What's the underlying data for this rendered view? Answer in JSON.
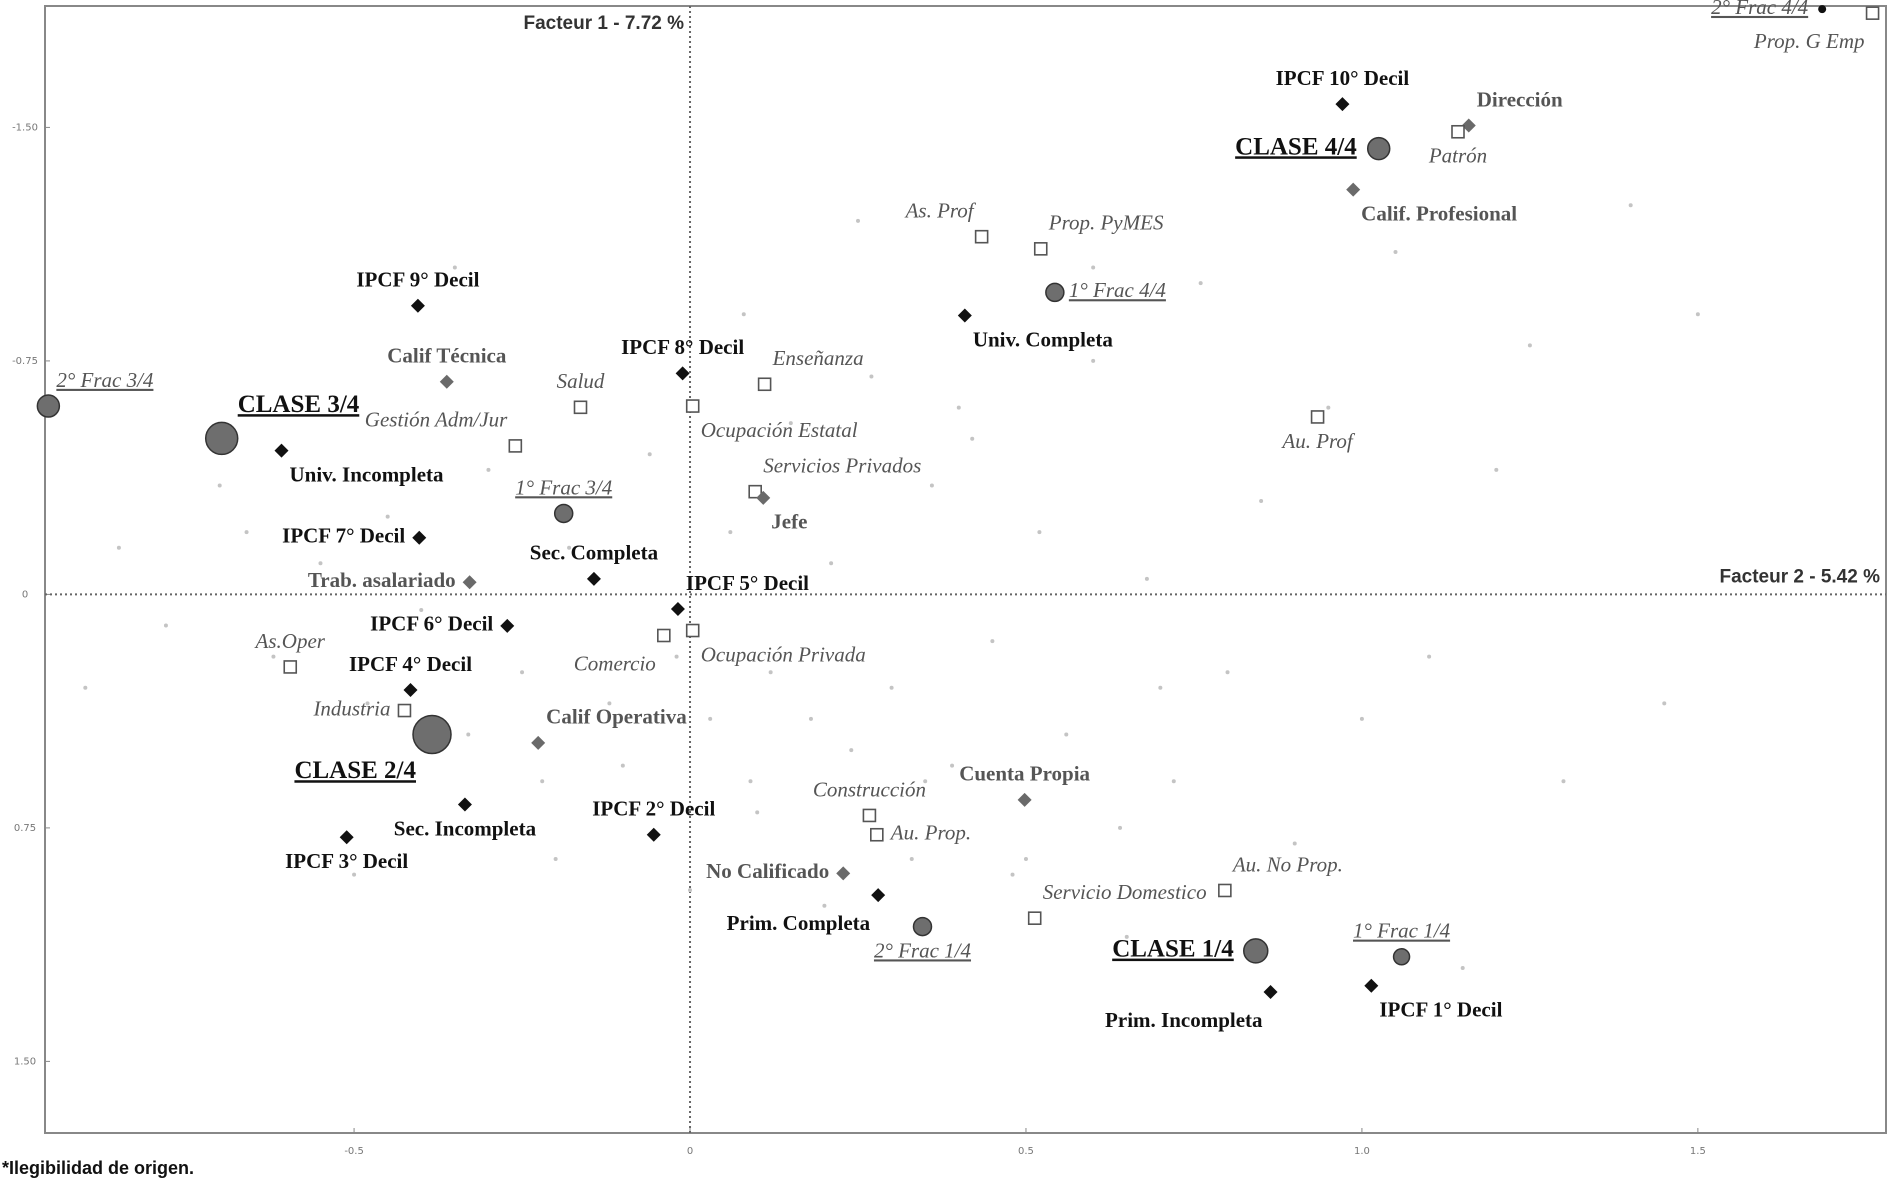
{
  "chart_data": {
    "type": "scatter",
    "x_axis_title": "Facteur 2 - 5.42 %",
    "y_axis_title": "Facteur 1 - 7.72 %",
    "xlim": [
      -0.96,
      1.78
    ],
    "ylim": [
      -1.89,
      1.73
    ],
    "y_inverted": true,
    "xticks": [
      -0.5,
      0,
      0.5,
      {
        "value": 1.0,
        "label": "1.0"
      },
      1.5
    ],
    "yticks": [
      {
        "value": -1.5,
        "label": "-1.50"
      },
      {
        "value": -0.75,
        "label": "-0.75"
      },
      0,
      {
        "value": 0.75,
        "label": "0.75"
      },
      {
        "value": 1.5,
        "label": "1.50"
      }
    ],
    "footnote": "*Ilegibilidad de origen.",
    "points": [
      {
        "label": "2° Frac 4/4",
        "x": 1.685,
        "y": -1.88,
        "marker": "dot",
        "size": 4,
        "label_style": "frac",
        "label_pos": "left"
      },
      {
        "label": "Prop. G Emp",
        "x": 1.76,
        "y": -1.867,
        "marker": "square",
        "label_style": "italic",
        "label_pos": "below-left"
      },
      {
        "label": "IPCF 10° Decil",
        "x": 0.971,
        "y": -1.575,
        "marker": "diamond-black",
        "label_style": "bold",
        "label_pos": "above"
      },
      {
        "label": "Dirección",
        "x": 1.159,
        "y": -1.506,
        "marker": "diamond-gray",
        "label_style": "bold-gray",
        "label_pos": "above-right"
      },
      {
        "label": "Patrón",
        "x": 1.143,
        "y": -1.486,
        "marker": "square",
        "label_style": "italic",
        "label_pos": "below"
      },
      {
        "label": "CLASE 4/4",
        "x": 1.025,
        "y": -1.432,
        "marker": "circle",
        "size": 11,
        "label_style": "class",
        "label_pos": "left"
      },
      {
        "label": "Calif. Profesional",
        "x": 0.987,
        "y": -1.3,
        "marker": "diamond-gray",
        "label_style": "bold-gray",
        "label_pos": "below-right"
      },
      {
        "label": "As. Prof",
        "x": 0.434,
        "y": -1.149,
        "marker": "square",
        "label_style": "italic",
        "label_pos": "above-left"
      },
      {
        "label": "Prop. PyMES",
        "x": 0.522,
        "y": -1.11,
        "marker": "square",
        "label_style": "italic",
        "label_pos": "above-right"
      },
      {
        "label": "1° Frac 4/4",
        "x": 0.543,
        "y": -0.97,
        "marker": "circle",
        "size": 9,
        "label_style": "frac",
        "label_pos": "right"
      },
      {
        "label": "Univ. Completa",
        "x": 0.409,
        "y": -0.896,
        "marker": "diamond-black",
        "label_style": "bold",
        "label_pos": "below-right"
      },
      {
        "label": "IPCF 9° Decil",
        "x": -0.405,
        "y": -0.927,
        "marker": "diamond-black",
        "label_style": "bold",
        "label_pos": "above"
      },
      {
        "label": "Calif Técnica",
        "x": -0.362,
        "y": -0.683,
        "marker": "diamond-gray",
        "label_style": "bold-gray",
        "label_pos": "above"
      },
      {
        "label": "IPCF 8° Decil",
        "x": -0.011,
        "y": -0.71,
        "marker": "diamond-black",
        "label_style": "bold",
        "label_pos": "above"
      },
      {
        "label": "Enseñanza",
        "x": 0.111,
        "y": -0.675,
        "marker": "square",
        "label_style": "italic",
        "label_pos": "above-right"
      },
      {
        "label": "Salud",
        "x": -0.163,
        "y": -0.601,
        "marker": "square",
        "label_style": "italic",
        "label_pos": "above"
      },
      {
        "label": "Ocupación Estatal",
        "x": 0.004,
        "y": -0.605,
        "marker": "square",
        "label_style": "italic",
        "label_pos": "below-right"
      },
      {
        "label": "2° Frac 3/4",
        "x": -0.955,
        "y": -0.605,
        "marker": "circle",
        "size": 11,
        "label_style": "frac",
        "label_pos": "above-right"
      },
      {
        "label": "CLASE 3/4",
        "x": -0.697,
        "y": -0.501,
        "marker": "circle",
        "size": 16,
        "label_style": "class",
        "label_pos": "above-right"
      },
      {
        "label": "Gestión Adm/Jur",
        "x": -0.26,
        "y": -0.477,
        "marker": "square",
        "label_style": "italic",
        "label_pos": "above-left"
      },
      {
        "label": "Univ. Incompleta",
        "x": -0.608,
        "y": -0.462,
        "marker": "diamond-black",
        "label_style": "bold",
        "label_pos": "below-right"
      },
      {
        "label": "Au. Prof",
        "x": 0.934,
        "y": -0.57,
        "marker": "square",
        "label_style": "italic",
        "label_pos": "below"
      },
      {
        "label": "Servicios Privados",
        "x": 0.097,
        "y": -0.33,
        "marker": "square",
        "label_style": "italic",
        "label_pos": "above-right"
      },
      {
        "label": "Jefe",
        "x": 0.109,
        "y": -0.31,
        "marker": "diamond-gray",
        "label_style": "bold-gray",
        "label_pos": "below-right"
      },
      {
        "label": "1° Frac 3/4",
        "x": -0.188,
        "y": -0.26,
        "marker": "circle",
        "size": 9,
        "label_style": "frac",
        "label_pos": "above"
      },
      {
        "label": "IPCF 7° Decil",
        "x": -0.403,
        "y": -0.182,
        "marker": "diamond-black",
        "label_style": "bold",
        "label_pos": "left"
      },
      {
        "label": "Sec. Completa",
        "x": -0.143,
        "y": -0.05,
        "marker": "diamond-black",
        "label_style": "bold",
        "label_pos": "above"
      },
      {
        "label": "Trab. asalariado",
        "x": -0.328,
        "y": -0.039,
        "marker": "diamond-gray",
        "label_style": "bold-gray",
        "label_pos": "left"
      },
      {
        "label": "IPCF 5° Decil",
        "x": -0.018,
        "y": 0.047,
        "marker": "diamond-black",
        "label_style": "bold",
        "label_pos": "above-right"
      },
      {
        "label": "IPCF 6° Decil",
        "x": -0.272,
        "y": 0.101,
        "marker": "diamond-black",
        "label_style": "bold",
        "label_pos": "left"
      },
      {
        "label": "As.Oper",
        "x": -0.595,
        "y": 0.233,
        "marker": "square",
        "label_style": "italic",
        "label_pos": "above"
      },
      {
        "label": "IPCF 4° Decil",
        "x": -0.416,
        "y": 0.307,
        "marker": "diamond-black",
        "label_style": "bold",
        "label_pos": "above"
      },
      {
        "label": "Comercio",
        "x": -0.039,
        "y": 0.132,
        "marker": "square",
        "label_style": "italic",
        "label_pos": "below-left"
      },
      {
        "label": "Ocupación Privada",
        "x": 0.004,
        "y": 0.116,
        "marker": "square",
        "label_style": "italic",
        "label_pos": "below-right"
      },
      {
        "label": "Industria",
        "x": -0.425,
        "y": 0.373,
        "marker": "square",
        "label_style": "italic",
        "label_pos": "left"
      },
      {
        "label": "CLASE 2/4",
        "x": -0.384,
        "y": 0.45,
        "marker": "circle",
        "size": 19,
        "label_style": "class",
        "label_pos": "below-left"
      },
      {
        "label": "Calif Operativa",
        "x": -0.226,
        "y": 0.477,
        "marker": "diamond-gray",
        "label_style": "bold-gray",
        "label_pos": "above-right"
      },
      {
        "label": "Sec. Incompleta",
        "x": -0.335,
        "y": 0.675,
        "marker": "diamond-black",
        "label_style": "bold",
        "label_pos": "below"
      },
      {
        "label": "IPCF 3° Decil",
        "x": -0.511,
        "y": 0.78,
        "marker": "diamond-black",
        "label_style": "bold",
        "label_pos": "below"
      },
      {
        "label": "IPCF 2° Decil",
        "x": -0.054,
        "y": 0.772,
        "marker": "diamond-black",
        "label_style": "bold",
        "label_pos": "above"
      },
      {
        "label": "Construcción",
        "x": 0.267,
        "y": 0.71,
        "marker": "square",
        "label_style": "italic",
        "label_pos": "above"
      },
      {
        "label": "Cuenta Propia",
        "x": 0.498,
        "y": 0.66,
        "marker": "diamond-gray",
        "label_style": "bold-gray",
        "label_pos": "above"
      },
      {
        "label": "Au. Prop.",
        "x": 0.278,
        "y": 0.772,
        "marker": "square",
        "label_style": "italic",
        "label_pos": "right"
      },
      {
        "label": "No Calificado",
        "x": 0.228,
        "y": 0.896,
        "marker": "diamond-gray",
        "label_style": "bold-gray",
        "label_pos": "left"
      },
      {
        "label": "Prim. Completa",
        "x": 0.28,
        "y": 0.966,
        "marker": "diamond-black",
        "label_style": "bold",
        "label_pos": "below-left"
      },
      {
        "label": "Au. No Prop.",
        "x": 0.796,
        "y": 0.951,
        "marker": "square",
        "label_style": "italic",
        "label_pos": "above-right"
      },
      {
        "label": "Servicio Domestico",
        "x": 0.513,
        "y": 1.04,
        "marker": "square",
        "label_style": "italic",
        "label_pos": "above-right"
      },
      {
        "label": "2° Frac 1/4",
        "x": 0.346,
        "y": 1.067,
        "marker": "circle",
        "size": 9,
        "label_style": "frac",
        "label_pos": "below"
      },
      {
        "label": "CLASE 1/4",
        "x": 0.842,
        "y": 1.145,
        "marker": "circle",
        "size": 12,
        "label_style": "class",
        "label_pos": "left"
      },
      {
        "label": "1° Frac 1/4",
        "x": 1.059,
        "y": 1.164,
        "marker": "circle",
        "size": 8,
        "label_style": "frac",
        "label_pos": "above"
      },
      {
        "label": "Prim. Incompleta",
        "x": 0.864,
        "y": 1.277,
        "marker": "diamond-black",
        "label_style": "bold",
        "label_pos": "below-left"
      },
      {
        "label": "IPCF 1° Decil",
        "x": 1.014,
        "y": 1.257,
        "marker": "diamond-black",
        "label_style": "bold",
        "label_pos": "below-right"
      }
    ],
    "background_points": {
      "x": [
        -0.85,
        -0.78,
        -0.7,
        -0.62,
        -0.55,
        -0.48,
        -0.45,
        -0.4,
        -0.33,
        -0.3,
        -0.25,
        -0.22,
        -0.18,
        -0.12,
        -0.1,
        -0.06,
        -0.02,
        0.03,
        0.06,
        0.09,
        0.12,
        0.15,
        0.18,
        0.21,
        0.24,
        0.27,
        0.3,
        0.33,
        0.36,
        0.39,
        0.42,
        0.45,
        0.48,
        0.52,
        0.56,
        0.6,
        0.64,
        0.68,
        0.72,
        0.76,
        0.8,
        0.85,
        0.9,
        0.95,
        1.0,
        1.05,
        1.1,
        1.2,
        1.3,
        1.4,
        1.5,
        -0.9,
        -0.66,
        -0.5,
        -0.2,
        0.0,
        0.1,
        0.2,
        0.35,
        0.5,
        0.65,
        0.7,
        0.08,
        -0.35,
        0.25,
        0.4,
        0.6,
        1.15,
        1.25,
        1.45
      ],
      "y": [
        -0.15,
        0.1,
        -0.35,
        0.2,
        -0.1,
        0.35,
        -0.25,
        0.05,
        0.45,
        -0.4,
        0.25,
        0.6,
        -0.15,
        0.35,
        0.55,
        -0.45,
        0.2,
        0.4,
        -0.2,
        0.6,
        0.25,
        -0.55,
        0.4,
        -0.1,
        0.5,
        -0.7,
        0.3,
        0.85,
        -0.35,
        0.55,
        -0.5,
        0.15,
        0.9,
        -0.2,
        0.45,
        -0.75,
        0.75,
        -0.05,
        0.6,
        -1.0,
        0.25,
        -0.3,
        0.8,
        -0.6,
        0.4,
        -1.1,
        0.2,
        -0.4,
        0.6,
        -1.25,
        -0.9,
        0.3,
        -0.2,
        0.9,
        0.85,
        0.95,
        0.7,
        1.0,
        0.6,
        0.85,
        1.1,
        0.3,
        -0.9,
        -1.05,
        -1.2,
        -0.6,
        -1.05,
        1.2,
        -0.8,
        0.35
      ]
    }
  }
}
